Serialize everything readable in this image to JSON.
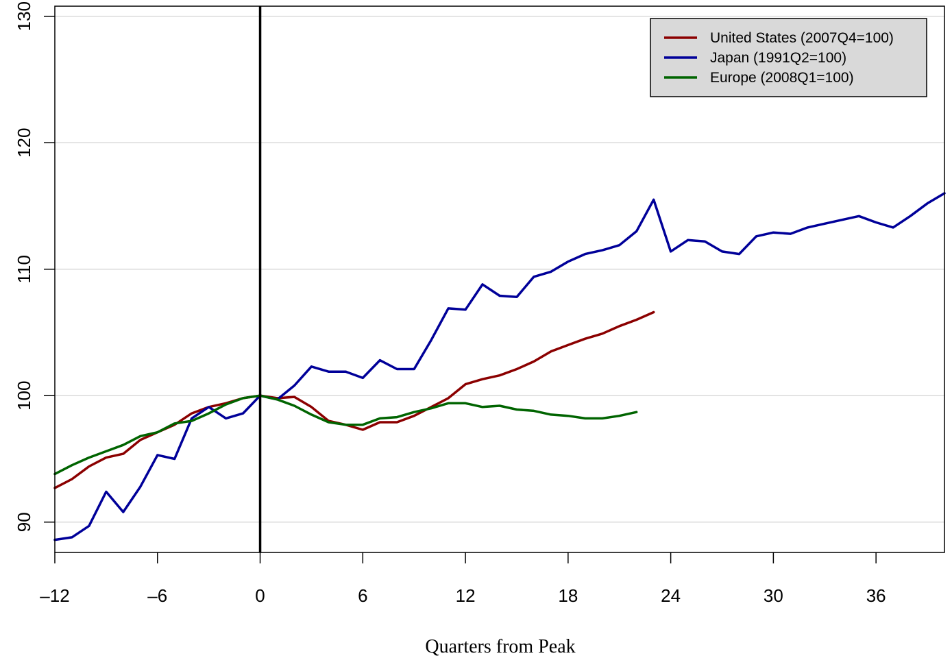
{
  "chart_data": {
    "type": "line",
    "title": "",
    "xlabel": "Quarters from Peak",
    "ylabel": "",
    "xlim": [
      -12,
      40
    ],
    "ylim": [
      87.6,
      130.8
    ],
    "x_ticks": [
      "–12",
      "–6",
      "0",
      "6",
      "12",
      "18",
      "24",
      "30",
      "36"
    ],
    "x_tick_values": [
      -12,
      -6,
      0,
      6,
      12,
      18,
      24,
      30,
      36
    ],
    "y_ticks": [
      "90",
      "100",
      "110",
      "120",
      "130"
    ],
    "y_tick_values": [
      90,
      100,
      110,
      120,
      130
    ],
    "grid": "horizontal",
    "vline_x": 0,
    "legend_position": "top-right",
    "series": [
      {
        "name": "United States (2007Q4=100)",
        "color": "#8b0000",
        "x": [
          -12,
          -11,
          -10,
          -9,
          -8,
          -7,
          -6,
          -5,
          -4,
          -3,
          -2,
          -1,
          0,
          1,
          2,
          3,
          4,
          5,
          6,
          7,
          8,
          9,
          10,
          11,
          12,
          13,
          14,
          15,
          16,
          17,
          18,
          19,
          20,
          21,
          22,
          23
        ],
        "values": [
          92.7,
          93.4,
          94.4,
          95.1,
          95.4,
          96.5,
          97.1,
          97.7,
          98.6,
          99.1,
          99.4,
          99.8,
          100.0,
          99.8,
          99.9,
          99.1,
          98.0,
          97.7,
          97.3,
          97.9,
          97.9,
          98.4,
          99.1,
          99.8,
          100.9,
          101.3,
          101.6,
          102.1,
          102.7,
          103.5,
          104.0,
          104.5,
          104.9,
          105.5,
          106.0,
          106.6
        ]
      },
      {
        "name": "Japan (1991Q2=100)",
        "color": "#000099",
        "x": [
          -12,
          -11,
          -10,
          -9,
          -8,
          -7,
          -6,
          -5,
          -4,
          -3,
          -2,
          -1,
          0,
          1,
          2,
          3,
          4,
          5,
          6,
          7,
          8,
          9,
          10,
          11,
          12,
          13,
          14,
          15,
          16,
          17,
          18,
          19,
          20,
          21,
          22,
          23,
          24,
          25,
          26,
          27,
          28,
          29,
          30,
          31,
          32,
          33,
          34,
          35,
          36,
          37,
          38,
          39,
          40
        ],
        "values": [
          88.6,
          88.8,
          89.7,
          92.4,
          90.8,
          92.8,
          95.3,
          95.0,
          98.2,
          99.1,
          98.2,
          98.6,
          100.0,
          99.7,
          100.8,
          102.3,
          101.9,
          101.9,
          101.4,
          102.8,
          102.1,
          102.1,
          104.4,
          106.9,
          106.8,
          108.8,
          107.9,
          107.8,
          109.4,
          109.8,
          110.6,
          111.2,
          111.5,
          111.9,
          113.0,
          115.5,
          111.4,
          112.3,
          112.2,
          111.4,
          111.2,
          112.6,
          112.9,
          112.8,
          113.3,
          113.6,
          113.9,
          114.2,
          113.7,
          113.3,
          114.2,
          115.2,
          116.0
        ]
      },
      {
        "name": "Europe (2008Q1=100)",
        "color": "#006400",
        "x": [
          -12,
          -11,
          -10,
          -9,
          -8,
          -7,
          -6,
          -5,
          -4,
          -3,
          -2,
          -1,
          0,
          1,
          2,
          3,
          4,
          5,
          6,
          7,
          8,
          9,
          10,
          11,
          12,
          13,
          14,
          15,
          16,
          17,
          18,
          19,
          20,
          21,
          22
        ],
        "values": [
          93.8,
          94.5,
          95.1,
          95.6,
          96.1,
          96.8,
          97.1,
          97.8,
          98.0,
          98.6,
          99.3,
          99.8,
          100.0,
          99.7,
          99.2,
          98.5,
          97.9,
          97.7,
          97.7,
          98.2,
          98.3,
          98.7,
          99.0,
          99.4,
          99.4,
          99.1,
          99.2,
          98.9,
          98.8,
          98.5,
          98.4,
          98.2,
          98.2,
          98.4,
          98.7
        ]
      }
    ]
  }
}
